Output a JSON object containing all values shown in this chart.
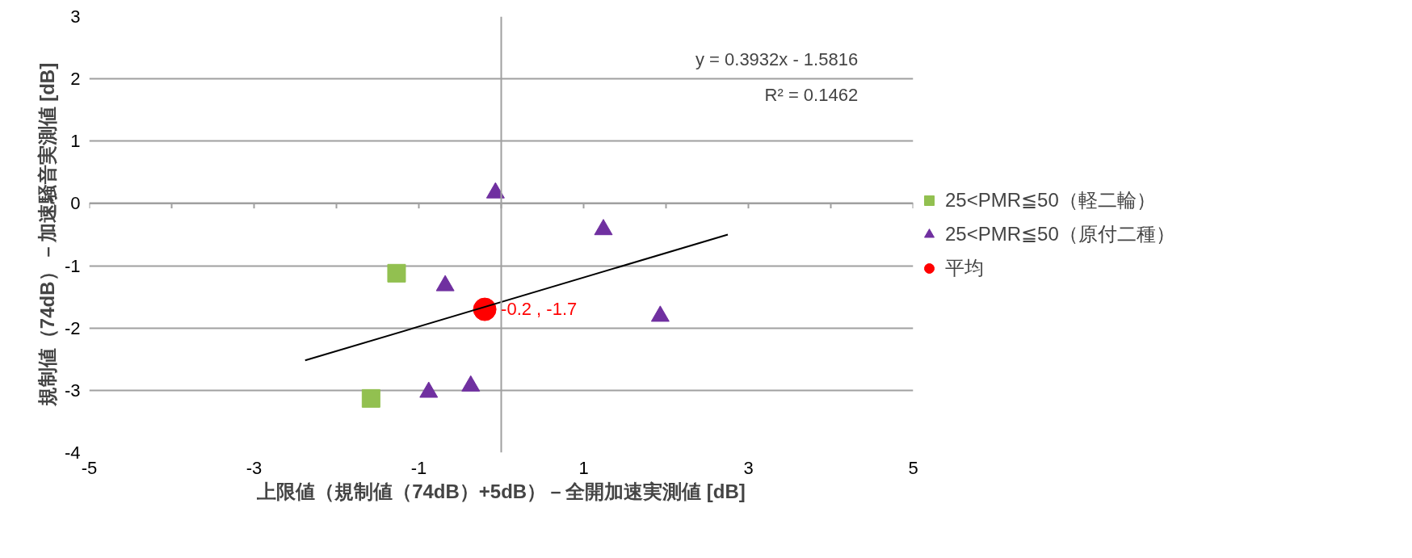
{
  "chart_data": {
    "type": "scatter",
    "xlabel": "上限値（規制値（74dB）+5dB）－全開加速実測値 [dB]",
    "ylabel": "規制値（74dB）－加速騒音実測値 [dB]",
    "xlim": [
      -5,
      5
    ],
    "ylim": [
      -4,
      3
    ],
    "xticks": [
      -5,
      -3,
      -1,
      1,
      3,
      5
    ],
    "yticks": [
      -4,
      -3,
      -2,
      -1,
      0,
      1,
      2,
      3
    ],
    "grid": "y",
    "legend": "right",
    "series": [
      {
        "name": "25<PMR≦50（軽二輪）",
        "color": "#92c050",
        "marker": "square",
        "x": [
          -1.27,
          -1.58
        ],
        "values": [
          -1.12,
          -3.13
        ]
      },
      {
        "name": "25<PMR≦50（原付二種）",
        "color": "#7030a0",
        "marker": "triangle",
        "x": [
          -0.07,
          1.24,
          -0.68,
          1.93,
          -0.88,
          -0.37
        ],
        "values": [
          0.17,
          -0.42,
          -1.32,
          -1.81,
          -3.03,
          -2.93
        ]
      },
      {
        "name": "平均",
        "color": "#ff0000",
        "marker": "circle",
        "x": [
          -0.2
        ],
        "values": [
          -1.7
        ],
        "value_labels": [
          "-0.2 , -1.7"
        ]
      },
      {
        "type": "line",
        "color": "#000000",
        "x": [
          -2.38,
          2.75
        ],
        "values": [
          -2.52,
          -0.5
        ]
      }
    ],
    "annotations": [
      "y = 0.3932x - 1.5816",
      "R² = 0.1462"
    ]
  }
}
